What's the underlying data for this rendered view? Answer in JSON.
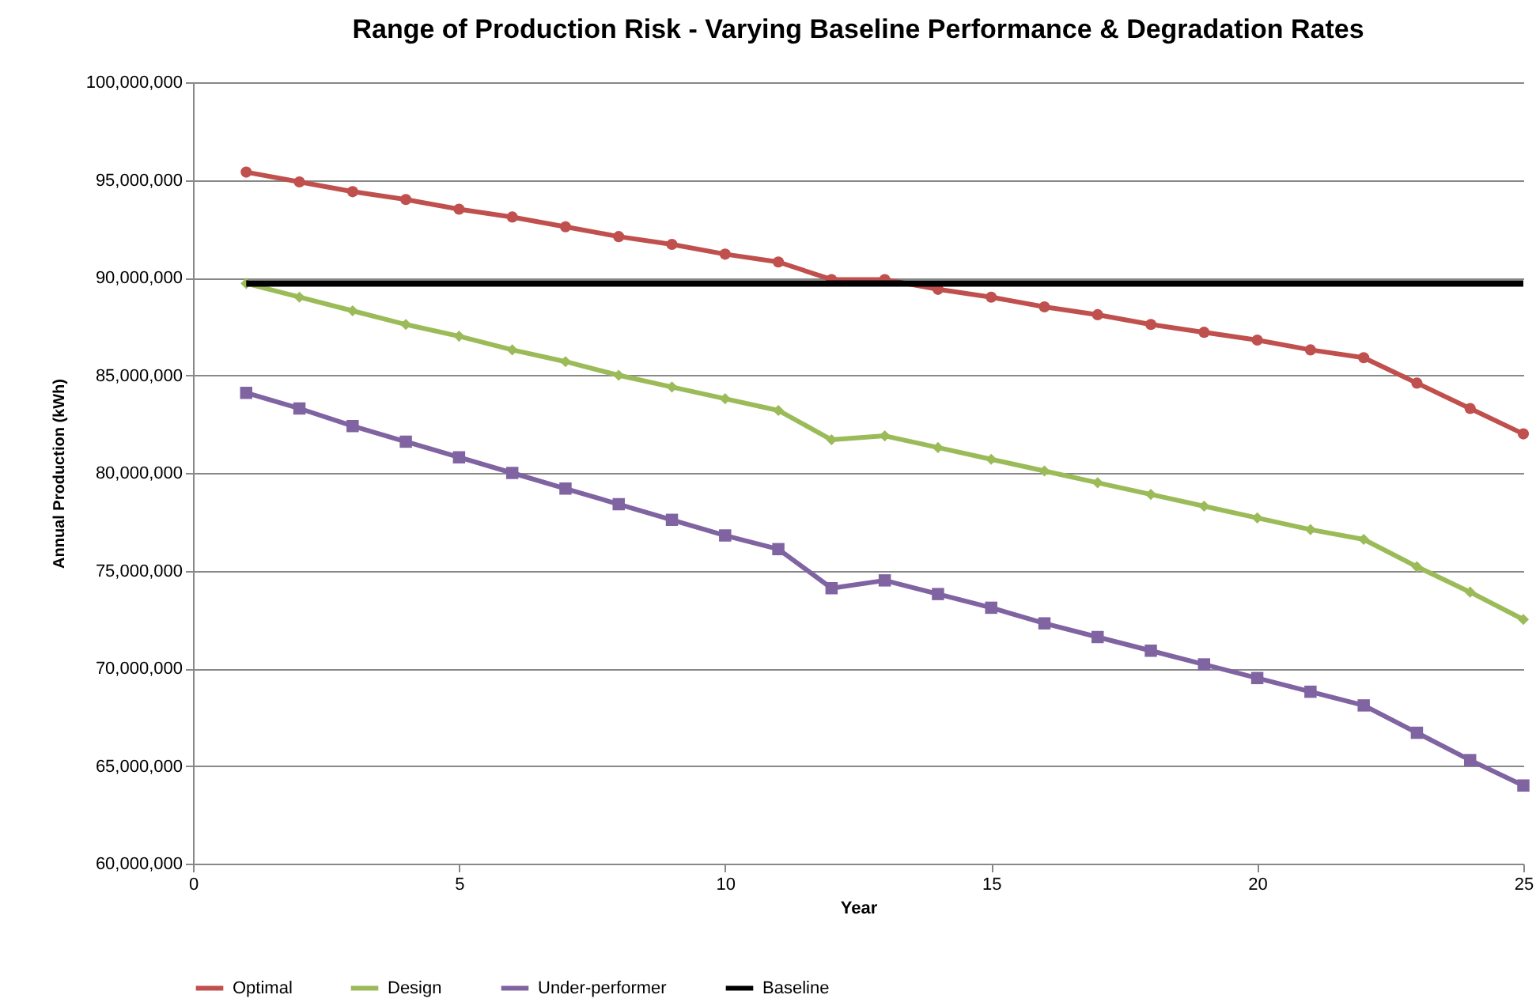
{
  "chart_data": {
    "type": "line",
    "title": "Range of Production Risk - Varying Baseline Performance & Degradation Rates",
    "xlabel": "Year",
    "ylabel": "Annual Production (kWh)",
    "x": [
      1,
      2,
      3,
      4,
      5,
      6,
      7,
      8,
      9,
      10,
      11,
      12,
      13,
      14,
      15,
      16,
      17,
      18,
      19,
      20,
      21,
      22,
      23,
      24,
      25
    ],
    "xlim": [
      0,
      25
    ],
    "xticks": [
      0,
      5,
      10,
      15,
      20,
      25
    ],
    "ylim": [
      60000000,
      100000000
    ],
    "yticks": [
      {
        "value": 60000000,
        "label": "60,000,000"
      },
      {
        "value": 65000000,
        "label": "65,000,000"
      },
      {
        "value": 70000000,
        "label": "70,000,000"
      },
      {
        "value": 75000000,
        "label": "75,000,000"
      },
      {
        "value": 80000000,
        "label": "80,000,000"
      },
      {
        "value": 85000000,
        "label": "85,000,000"
      },
      {
        "value": 90000000,
        "label": "90,000,000"
      },
      {
        "value": 95000000,
        "label": "95,000,000"
      },
      {
        "value": 100000000,
        "label": "100,000,000"
      }
    ],
    "grid": "y",
    "legend": "bottom",
    "series": [
      {
        "name": "Optimal",
        "color": "#c0504d",
        "marker": "circle",
        "values": [
          95400000,
          94900000,
          94400000,
          94000000,
          93500000,
          93100000,
          92600000,
          92100000,
          91700000,
          91200000,
          90800000,
          89900000,
          89900000,
          89400000,
          89000000,
          88500000,
          88100000,
          87600000,
          87200000,
          86800000,
          86300000,
          85900000,
          84600000,
          83300000,
          82000000
        ]
      },
      {
        "name": "Design",
        "color": "#9bbb59",
        "marker": "diamond",
        "values": [
          89700000,
          89000000,
          88300000,
          87600000,
          87000000,
          86300000,
          85700000,
          85000000,
          84400000,
          83800000,
          83200000,
          81700000,
          81900000,
          81300000,
          80700000,
          80100000,
          79500000,
          78900000,
          78300000,
          77700000,
          77100000,
          76600000,
          75200000,
          73900000,
          72500000
        ]
      },
      {
        "name": "Under-performer",
        "color": "#8064a2",
        "marker": "square",
        "values": [
          84100000,
          83300000,
          82400000,
          81600000,
          80800000,
          80000000,
          79200000,
          78400000,
          77600000,
          76800000,
          76100000,
          74100000,
          74500000,
          73800000,
          73100000,
          72300000,
          71600000,
          70900000,
          70200000,
          69500000,
          68800000,
          68100000,
          66700000,
          65300000,
          64000000
        ]
      },
      {
        "name": "Baseline",
        "color": "#000000",
        "marker": "none",
        "values": [
          89700000,
          89700000,
          89700000,
          89700000,
          89700000,
          89700000,
          89700000,
          89700000,
          89700000,
          89700000,
          89700000,
          89700000,
          89700000,
          89700000,
          89700000,
          89700000,
          89700000,
          89700000,
          89700000,
          89700000,
          89700000,
          89700000,
          89700000,
          89700000,
          89700000
        ]
      }
    ]
  }
}
